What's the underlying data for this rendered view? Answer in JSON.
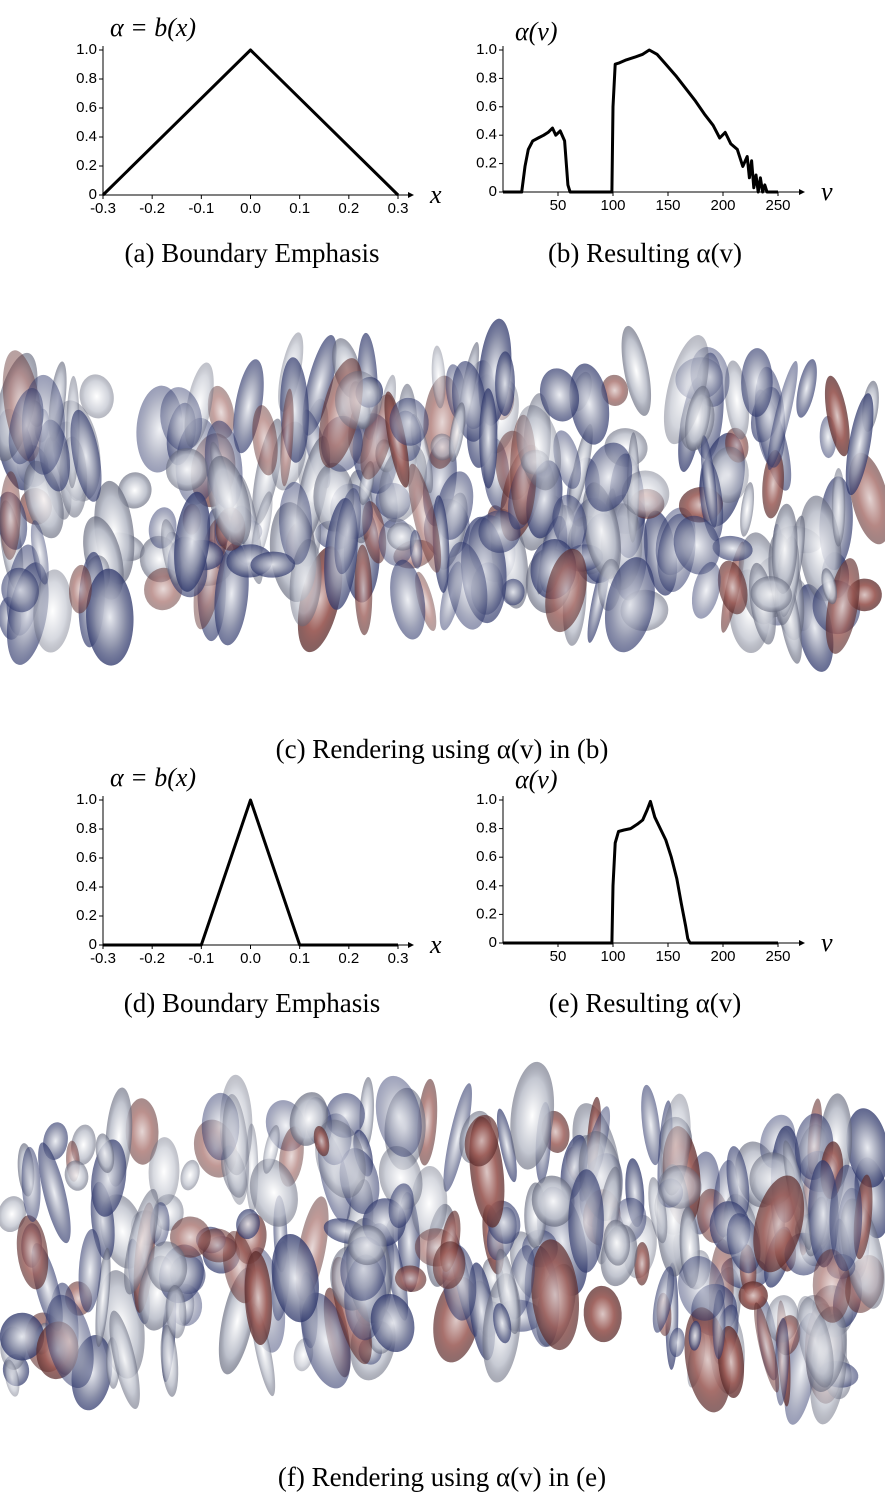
{
  "chart_data": [
    {
      "type": "line",
      "title": "α = b(x)",
      "x_label": "x",
      "caption": "(a) Boundary Emphasis",
      "x": [
        -0.3,
        0,
        0.3
      ],
      "values": [
        0,
        1,
        0
      ],
      "color": "#000000",
      "xlim": [
        -0.3,
        0.3
      ],
      "ylim": [
        0,
        1
      ],
      "xticks": [
        -0.3,
        -0.2,
        -0.1,
        {
          "value": 0,
          "label": "0.0"
        },
        0.1,
        0.2,
        0.3
      ],
      "yticks": [
        0,
        0.2,
        0.4,
        0.6,
        0.8,
        {
          "value": 1,
          "label": "1.0"
        }
      ]
    },
    {
      "type": "line",
      "title": "α(v)",
      "x_label": "v",
      "caption": "(b) Resulting α(v)",
      "x": [
        0,
        17,
        20,
        23,
        27,
        32,
        37,
        41,
        45,
        48,
        52,
        56,
        59,
        61,
        99,
        100,
        102,
        106,
        112,
        120,
        127,
        133,
        140,
        148,
        157,
        166,
        175,
        183,
        191,
        197,
        202,
        207,
        213,
        218,
        222,
        224,
        226,
        228,
        230,
        232,
        234,
        236,
        238,
        240,
        242,
        250
      ],
      "values": [
        0,
        0,
        0.18,
        0.3,
        0.36,
        0.38,
        0.4,
        0.42,
        0.45,
        0.4,
        0.43,
        0.36,
        0.05,
        0,
        0,
        0.6,
        0.9,
        0.91,
        0.93,
        0.95,
        0.97,
        1.0,
        0.97,
        0.9,
        0.82,
        0.73,
        0.64,
        0.55,
        0.47,
        0.38,
        0.42,
        0.34,
        0.3,
        0.18,
        0.25,
        0.1,
        0.22,
        0.03,
        0.12,
        0,
        0.1,
        0,
        0.05,
        0,
        0,
        0
      ],
      "color": "#000000",
      "xlim": [
        0,
        260
      ],
      "ylim": [
        0,
        1
      ],
      "xticks": [
        50,
        100,
        150,
        200,
        250
      ],
      "yticks": [
        0,
        0.2,
        0.4,
        0.6,
        0.8,
        {
          "value": 1,
          "label": "1.0"
        }
      ]
    },
    {
      "type": "line",
      "title": "α = b(x)",
      "x_label": "x",
      "caption": "(d) Boundary Emphasis",
      "x": [
        -0.3,
        -0.1,
        0,
        0.1,
        0.3
      ],
      "values": [
        0,
        0,
        1,
        0,
        0
      ],
      "color": "#000000",
      "xlim": [
        -0.3,
        0.3
      ],
      "ylim": [
        0,
        1
      ],
      "xticks": [
        -0.3,
        -0.2,
        -0.1,
        {
          "value": 0,
          "label": "0.0"
        },
        0.1,
        0.2,
        0.3
      ],
      "yticks": [
        0,
        0.2,
        0.4,
        0.6,
        0.8,
        {
          "value": 1,
          "label": "1.0"
        }
      ]
    },
    {
      "type": "line",
      "title": "α(v)",
      "x_label": "v",
      "caption": "(e) Resulting α(v)",
      "x": [
        0,
        99,
        100,
        102,
        105,
        110,
        116,
        122,
        127,
        131,
        134,
        138,
        143,
        148,
        153,
        158,
        162,
        166,
        168,
        170,
        250
      ],
      "values": [
        0,
        0,
        0.4,
        0.7,
        0.78,
        0.79,
        0.8,
        0.83,
        0.86,
        0.93,
        0.99,
        0.88,
        0.8,
        0.72,
        0.6,
        0.45,
        0.28,
        0.12,
        0.03,
        0,
        0
      ],
      "color": "#000000",
      "xlim": [
        0,
        260
      ],
      "ylim": [
        0,
        1
      ],
      "xticks": [
        50,
        100,
        150,
        200,
        250
      ],
      "yticks": [
        0,
        0.2,
        0.4,
        0.6,
        0.8,
        {
          "value": 1,
          "label": "1.0"
        }
      ]
    }
  ],
  "figures": [
    {
      "caption": "(c) Rendering using α(v) in (b)"
    },
    {
      "caption": "(f) Rendering using α(v) in (e)"
    }
  ]
}
